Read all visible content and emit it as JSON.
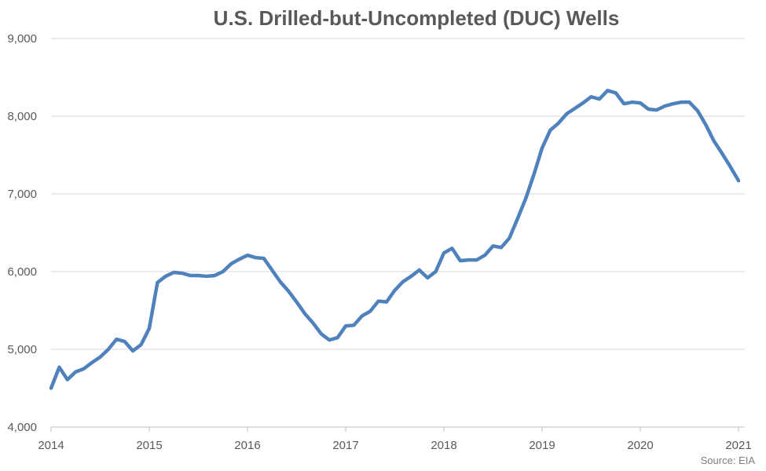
{
  "chart_data": {
    "type": "line",
    "title": "U.S. Drilled-but-Uncompleted (DUC) Wells",
    "xlabel": "",
    "ylabel": "",
    "source": "Source: EIA",
    "ylim": [
      4000,
      9000
    ],
    "y_ticks": [
      4000,
      5000,
      6000,
      7000,
      8000,
      9000
    ],
    "y_tick_labels": [
      "4,000",
      "5,000",
      "6,000",
      "7,000",
      "8,000",
      "9,000"
    ],
    "x_range": [
      "2014-01",
      "2021-01"
    ],
    "x_tick_labels": [
      "2014",
      "2015",
      "2016",
      "2017",
      "2018",
      "2019",
      "2020",
      "2021"
    ],
    "grid": "horizontal",
    "color": "#4f81bd",
    "series": [
      {
        "x": [
          "2014-01",
          "2014-02",
          "2014-03",
          "2014-04",
          "2014-05",
          "2014-06",
          "2014-07",
          "2014-08",
          "2014-09",
          "2014-10",
          "2014-11",
          "2014-12",
          "2015-01",
          "2015-02",
          "2015-03",
          "2015-04",
          "2015-05",
          "2015-06",
          "2015-07",
          "2015-08",
          "2015-09",
          "2015-10",
          "2015-11",
          "2015-12",
          "2016-01",
          "2016-02",
          "2016-03",
          "2016-04",
          "2016-05",
          "2016-06",
          "2016-07",
          "2016-08",
          "2016-09",
          "2016-10",
          "2016-11",
          "2016-12",
          "2017-01",
          "2017-02",
          "2017-03",
          "2017-04",
          "2017-05",
          "2017-06",
          "2017-07",
          "2017-08",
          "2017-09",
          "2017-10",
          "2017-11",
          "2017-12",
          "2018-01",
          "2018-02",
          "2018-03",
          "2018-04",
          "2018-05",
          "2018-06",
          "2018-07",
          "2018-08",
          "2018-09",
          "2018-10",
          "2018-11",
          "2018-12",
          "2019-01",
          "2019-02",
          "2019-03",
          "2019-04",
          "2019-05",
          "2019-06",
          "2019-07",
          "2019-08",
          "2019-09",
          "2019-10",
          "2019-11",
          "2019-12",
          "2020-01",
          "2020-02",
          "2020-03",
          "2020-04",
          "2020-05",
          "2020-06",
          "2020-07",
          "2020-08",
          "2020-09",
          "2020-10",
          "2020-11",
          "2020-12",
          "2021-01"
        ],
        "values": [
          4500,
          4770,
          4610,
          4710,
          4750,
          4830,
          4900,
          5000,
          5130,
          5100,
          4980,
          5060,
          5270,
          5860,
          5940,
          5990,
          5980,
          5950,
          5950,
          5940,
          5950,
          6000,
          6100,
          6160,
          6210,
          6180,
          6170,
          6020,
          5870,
          5750,
          5610,
          5460,
          5340,
          5200,
          5120,
          5150,
          5300,
          5310,
          5430,
          5490,
          5620,
          5610,
          5760,
          5870,
          5940,
          6020,
          5920,
          6000,
          6240,
          6300,
          6140,
          6150,
          6150,
          6210,
          6330,
          6310,
          6430,
          6680,
          6940,
          7250,
          7590,
          7820,
          7910,
          8030,
          8100,
          8170,
          8250,
          8220,
          8330,
          8300,
          8160,
          8180,
          8170,
          8090,
          8080,
          8130,
          8160,
          8180,
          8180,
          8070,
          7890,
          7680,
          7520,
          7350,
          7170
        ]
      }
    ]
  }
}
